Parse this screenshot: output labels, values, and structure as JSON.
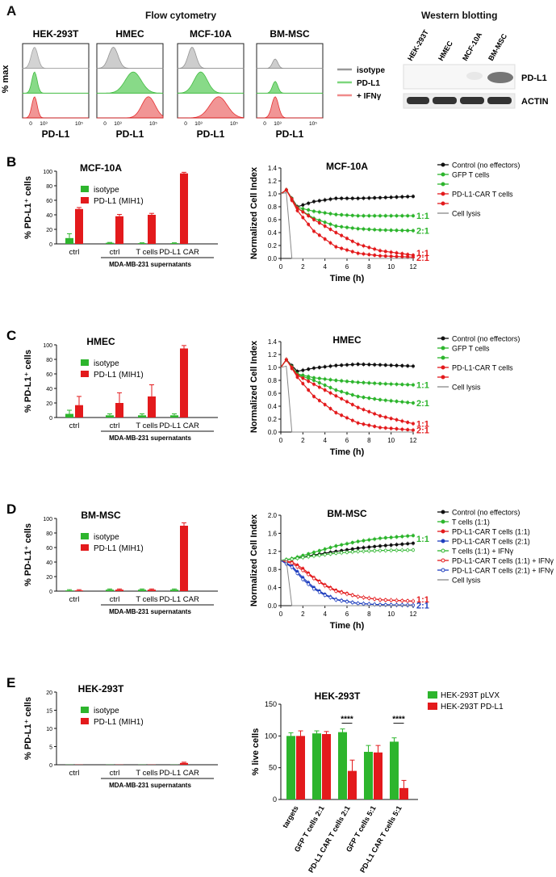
{
  "panelA": {
    "letter": "A",
    "flow_title": "Flow cytometry",
    "wb_title": "Western blotting",
    "ylabel": "% max",
    "xlabel": "PD-L1",
    "tick_zero": "0",
    "tick_3": "10³",
    "tick_5": "10⁵",
    "cells": [
      "HEK-293T",
      "HMEC",
      "MCF-10A",
      "BM-MSC"
    ],
    "legend": [
      "isotype",
      "PD-L1",
      "+ IFNγ"
    ],
    "wb_lanes": [
      "HEK-293T",
      "HMEC",
      "MCF-10A",
      "BM-MSC"
    ],
    "wb_rows": [
      "PD-L1",
      "ACTIN"
    ]
  },
  "bars": {
    "ylabel": "% PD-L1⁺ cells",
    "legend": [
      "isotype",
      "PD-L1 (MIH1)"
    ],
    "groups": [
      "ctrl",
      "ctrl",
      "T cells",
      "PD-L1 CAR"
    ],
    "supernatant_label": "MDA-MB-231 supernatants",
    "colors": {
      "isotype": "#2db52d",
      "pdl1": "#e31a1c"
    },
    "ticks": [
      "0",
      "20",
      "40",
      "60",
      "80",
      "100"
    ]
  },
  "panelB": {
    "letter": "B",
    "title": "MCF-10A",
    "isotype": [
      8,
      1.5,
      1,
      1
    ],
    "pdl1": [
      48,
      38,
      40,
      97
    ],
    "iso_err": [
      6,
      0.5,
      0.5,
      0.5
    ],
    "pdl1_err": [
      2,
      2.5,
      2,
      1.5
    ]
  },
  "panelC": {
    "letter": "C",
    "title": "HMEC",
    "isotype": [
      5,
      3,
      3,
      3
    ],
    "pdl1": [
      17,
      20,
      29,
      95
    ],
    "iso_err": [
      5,
      2,
      2,
      2
    ],
    "pdl1_err": [
      12,
      14,
      16,
      4
    ]
  },
  "panelD": {
    "letter": "D",
    "title": "BM-MSC",
    "isotype": [
      1,
      2,
      2,
      2
    ],
    "pdl1": [
      1,
      2,
      2,
      90
    ],
    "iso_err": [
      1,
      1,
      1,
      1
    ],
    "pdl1_err": [
      1,
      1,
      1,
      4
    ]
  },
  "panelE": {
    "letter": "E",
    "title": "HEK-293T",
    "ticks": [
      "0",
      "5",
      "10",
      "15",
      "20"
    ],
    "isotype": [
      0.05,
      0.05,
      0.05,
      0.05
    ],
    "pdl1": [
      0.05,
      0.05,
      0.05,
      0.5
    ],
    "iso_err": [
      0,
      0,
      0,
      0
    ],
    "pdl1_err": [
      0,
      0,
      0,
      0.2
    ]
  },
  "lines": {
    "ylabel": "Normalized Cell Index",
    "xlabel": "Time (h)",
    "xticks": [
      "0",
      "2",
      "4",
      "6",
      "8",
      "10",
      "12"
    ],
    "yticks": [
      "0.0",
      "0.2",
      "0.4",
      "0.6",
      "0.8",
      "1.0",
      "1.2",
      "1.4"
    ]
  },
  "chart_data": [
    {
      "type": "line",
      "title": "MCF-10A",
      "xlabel": "Time (h)",
      "ylabel": "Normalized Cell Index",
      "xlim": [
        0,
        12
      ],
      "ylim": [
        0,
        1.4
      ],
      "series": [
        {
          "name": "Control (no effectors)",
          "color": "#111111",
          "x": [
            0,
            0.5,
            1.5,
            3,
            5,
            7,
            9,
            12
          ],
          "y": [
            1.0,
            1.06,
            0.8,
            0.88,
            0.93,
            0.93,
            0.94,
            0.96
          ]
        },
        {
          "name": "GFP T cells",
          "color": "#2db52d",
          "x": [
            0,
            0.5,
            1.5,
            3,
            5,
            7,
            9,
            12
          ],
          "y": [
            1.0,
            1.06,
            0.79,
            0.73,
            0.68,
            0.66,
            0.66,
            0.66
          ]
        },
        {
          "name": "",
          "color": "#2db52d",
          "x": [
            0,
            0.5,
            1.5,
            3,
            5,
            7,
            9,
            12
          ],
          "y": [
            1.0,
            1.06,
            0.78,
            0.62,
            0.5,
            0.46,
            0.44,
            0.43
          ]
        },
        {
          "name": "PD-L1-CAR T cells",
          "color": "#e31a1c",
          "x": [
            0,
            0.5,
            1.5,
            3,
            5,
            7,
            9,
            12
          ],
          "y": [
            1.0,
            1.06,
            0.78,
            0.6,
            0.4,
            0.22,
            0.12,
            0.05
          ]
        },
        {
          "name": "",
          "color": "#e31a1c",
          "x": [
            0,
            0.5,
            1.5,
            3,
            5,
            7,
            9,
            12
          ],
          "y": [
            1.0,
            1.06,
            0.74,
            0.42,
            0.18,
            0.08,
            0.04,
            0.02
          ]
        },
        {
          "name": "Cell lysis",
          "color": "#888888",
          "x": [
            0,
            0.5,
            1,
            12
          ],
          "y": [
            1.0,
            1.02,
            0.0,
            0.0
          ]
        }
      ],
      "end_labels": [
        {
          "text": "1:1",
          "color": "#2db52d",
          "y": 0.66
        },
        {
          "text": "2:1",
          "color": "#2db52d",
          "y": 0.43
        },
        {
          "text": "1:1",
          "color": "#e31a1c",
          "y": 0.085
        },
        {
          "text": "2:1",
          "color": "#e31a1c",
          "y": 0.01
        }
      ]
    },
    {
      "type": "line",
      "title": "HMEC",
      "xlabel": "Time (h)",
      "ylabel": "Normalized Cell Index",
      "xlim": [
        0,
        12
      ],
      "ylim": [
        0,
        1.4
      ],
      "series": [
        {
          "name": "Control (no effectors)",
          "color": "#111111",
          "x": [
            0,
            0.5,
            1.5,
            3,
            5,
            7,
            9,
            12
          ],
          "y": [
            1.0,
            1.12,
            0.94,
            0.99,
            1.03,
            1.05,
            1.04,
            1.02
          ]
        },
        {
          "name": "GFP T cells",
          "color": "#2db52d",
          "x": [
            0,
            0.5,
            1.5,
            3,
            5,
            7,
            9,
            12
          ],
          "y": [
            1.0,
            1.12,
            0.9,
            0.84,
            0.8,
            0.77,
            0.75,
            0.73
          ]
        },
        {
          "name": "",
          "color": "#2db52d",
          "x": [
            0,
            0.5,
            1.5,
            3,
            5,
            7,
            9,
            12
          ],
          "y": [
            1.0,
            1.12,
            0.89,
            0.8,
            0.65,
            0.55,
            0.5,
            0.45
          ]
        },
        {
          "name": "PD-L1-CAR T cells",
          "color": "#e31a1c",
          "x": [
            0,
            0.5,
            1.5,
            3,
            5,
            7,
            9,
            12
          ],
          "y": [
            1.0,
            1.12,
            0.88,
            0.74,
            0.56,
            0.38,
            0.25,
            0.13
          ]
        },
        {
          "name": "",
          "color": "#e31a1c",
          "x": [
            0,
            0.5,
            1.5,
            3,
            5,
            7,
            9,
            12
          ],
          "y": [
            1.0,
            1.12,
            0.85,
            0.55,
            0.3,
            0.14,
            0.07,
            0.03
          ]
        },
        {
          "name": "Cell lysis",
          "color": "#888888",
          "x": [
            0,
            0.5,
            1,
            12
          ],
          "y": [
            1.0,
            1.02,
            0.0,
            0.0
          ]
        }
      ],
      "end_labels": [
        {
          "text": "1:1",
          "color": "#2db52d",
          "y": 0.73
        },
        {
          "text": "2:1",
          "color": "#2db52d",
          "y": 0.45
        },
        {
          "text": "1:1",
          "color": "#e31a1c",
          "y": 0.13
        },
        {
          "text": "2:1",
          "color": "#e31a1c",
          "y": 0.03
        }
      ]
    },
    {
      "type": "line",
      "title": "BM-MSC",
      "xlabel": "Time (h)",
      "ylabel": "Normalized Cell Index",
      "xlim": [
        0,
        12
      ],
      "ylim": [
        0,
        2.0
      ],
      "series": [
        {
          "name": "Control (no effectors)",
          "color": "#111111",
          "x": [
            0,
            1,
            3,
            5,
            7,
            9,
            12
          ],
          "y": [
            1.0,
            1.03,
            1.12,
            1.2,
            1.27,
            1.32,
            1.38
          ]
        },
        {
          "name": "T cells (1:1)",
          "color": "#2db52d",
          "x": [
            0,
            1,
            3,
            5,
            7,
            9,
            12
          ],
          "y": [
            1.0,
            1.04,
            1.18,
            1.32,
            1.42,
            1.49,
            1.55
          ]
        },
        {
          "name": "PD-L1-CAR T cells (1:1)",
          "color": "#e31a1c",
          "x": [
            0,
            1,
            2,
            3,
            4,
            5,
            7,
            9,
            12
          ],
          "y": [
            1.0,
            0.97,
            0.82,
            0.62,
            0.46,
            0.34,
            0.2,
            0.13,
            0.1
          ]
        },
        {
          "name": "PD-L1-CAR T cells (2:1)",
          "color": "#1f3fbf",
          "x": [
            0,
            1,
            2,
            3,
            4,
            5,
            7,
            9,
            12
          ],
          "y": [
            1.0,
            0.88,
            0.62,
            0.4,
            0.25,
            0.14,
            0.05,
            0.02,
            0.01
          ]
        },
        {
          "name": "T cells (1:1) + IFNγ",
          "color": "#2db52d",
          "open": true,
          "x": [
            0,
            1,
            3,
            5,
            7,
            9,
            12
          ],
          "y": [
            1.0,
            1.03,
            1.1,
            1.16,
            1.2,
            1.22,
            1.23
          ]
        },
        {
          "name": "PD-L1-CAR T cells (1:1) + IFNγ",
          "color": "#e31a1c",
          "open": true,
          "x": [
            0,
            1,
            2,
            3,
            4,
            5,
            7,
            9,
            12
          ],
          "y": [
            1.0,
            0.94,
            0.78,
            0.6,
            0.44,
            0.32,
            0.2,
            0.13,
            0.1
          ]
        },
        {
          "name": "PD-L1-CAR T cells (2:1) + IFNγ",
          "color": "#1f3fbf",
          "open": true,
          "x": [
            0,
            1,
            2,
            3,
            4,
            5,
            7,
            9,
            12
          ],
          "y": [
            1.0,
            0.85,
            0.58,
            0.37,
            0.23,
            0.13,
            0.05,
            0.02,
            0.01
          ]
        },
        {
          "name": "Cell lysis",
          "color": "#888888",
          "x": [
            0,
            0.5,
            1,
            12
          ],
          "y": [
            1.0,
            1.0,
            0.0,
            0.0
          ]
        }
      ],
      "end_labels": [
        {
          "text": "1:1",
          "color": "#2db52d",
          "y": 1.48
        },
        {
          "text": "1:1",
          "color": "#e31a1c",
          "y": 0.14
        },
        {
          "text": "2:1",
          "color": "#1f3fbf",
          "y": 0.01
        }
      ],
      "yticks": [
        "0.0",
        "0.4",
        "0.8",
        "1.2",
        "1.6",
        "2.0"
      ]
    },
    {
      "type": "bar",
      "title": "HEK-293T",
      "ylabel": "% live cells",
      "ylim": [
        0,
        150
      ],
      "categories": [
        "targets",
        "GFP T cells 2:1",
        "PD-L1 CAR T cells 2:1",
        "GFP T cells 5:1",
        "PD-L1 CAR T cells 5:1"
      ],
      "series": [
        {
          "name": "HEK-293T pLVX",
          "color": "#2db52d",
          "values": [
            100,
            104,
            106,
            75,
            91
          ],
          "err": [
            5,
            4,
            5,
            10,
            6
          ]
        },
        {
          "name": "HEK-293T PD-L1",
          "color": "#e31a1c",
          "values": [
            100,
            103,
            45,
            74,
            18
          ],
          "err": [
            8,
            4,
            17,
            11,
            12
          ]
        }
      ],
      "yticks": [
        "0",
        "50",
        "100",
        "150"
      ],
      "significance": [
        "****",
        "****"
      ]
    }
  ]
}
